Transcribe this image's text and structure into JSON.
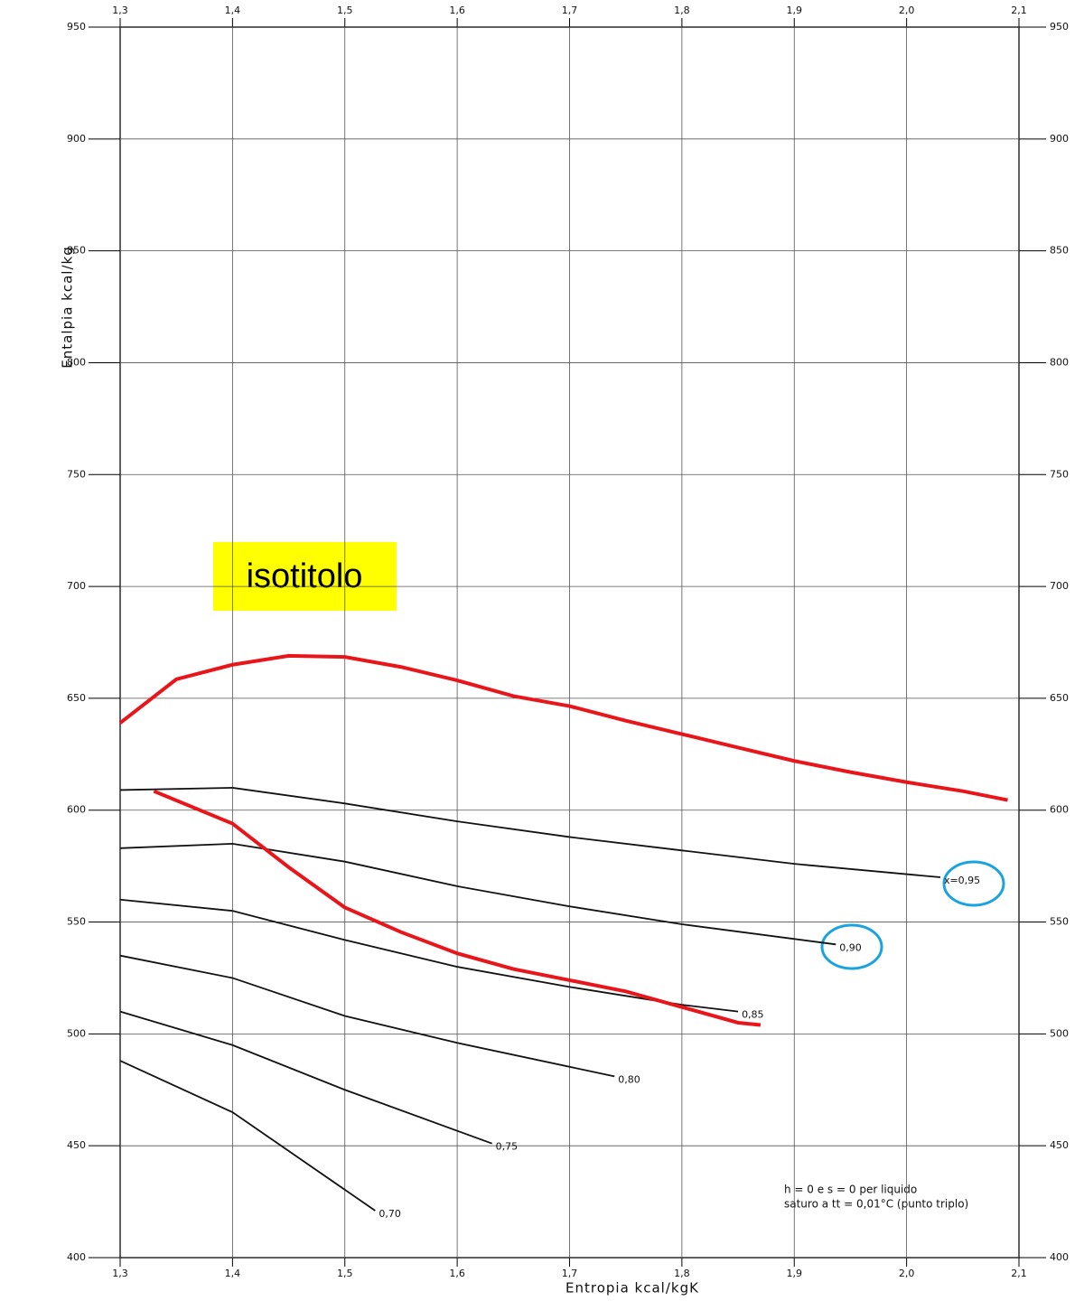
{
  "chart_data": {
    "type": "line",
    "x_label": "Entropia kcal/kgK",
    "y_label": "Entalpia kcal/kg",
    "xlim": [
      1.3,
      2.1
    ],
    "ylim": [
      400,
      950
    ],
    "xticks": [
      {
        "value": 1.3,
        "label": "1,3"
      },
      {
        "value": 1.4,
        "label": "1,4"
      },
      {
        "value": 1.5,
        "label": "1,5"
      },
      {
        "value": 1.6,
        "label": "1,6"
      },
      {
        "value": 1.7,
        "label": "1,7"
      },
      {
        "value": 1.8,
        "label": "1,8"
      },
      {
        "value": 1.9,
        "label": "1,9"
      },
      {
        "value": 2.0,
        "label": "2,0"
      },
      {
        "value": 2.1,
        "label": "2,1"
      }
    ],
    "yticks": [
      400,
      450,
      500,
      550,
      600,
      650,
      700,
      750,
      800,
      850,
      900,
      950
    ],
    "grid": true,
    "series": [
      {
        "name": "x=0,95",
        "color": "#111111",
        "x": [
          1.3,
          1.4,
          1.5,
          1.6,
          1.7,
          1.8,
          1.9,
          2.03
        ],
        "values": [
          609,
          610,
          603,
          595,
          588,
          582,
          576,
          570
        ]
      },
      {
        "name": "0,90",
        "color": "#111111",
        "x": [
          1.3,
          1.4,
          1.5,
          1.6,
          1.7,
          1.8,
          1.937
        ],
        "values": [
          583,
          585,
          577,
          566,
          557,
          549,
          540
        ]
      },
      {
        "name": "0,85",
        "color": "#111111",
        "x": [
          1.3,
          1.4,
          1.5,
          1.6,
          1.7,
          1.8,
          1.85
        ],
        "values": [
          560,
          555,
          542,
          530,
          521,
          513,
          510
        ]
      },
      {
        "name": "0,80",
        "color": "#111111",
        "x": [
          1.3,
          1.4,
          1.5,
          1.6,
          1.74
        ],
        "values": [
          535,
          525,
          508,
          496,
          481
        ]
      },
      {
        "name": "0,75",
        "color": "#111111",
        "x": [
          1.3,
          1.4,
          1.5,
          1.631
        ],
        "values": [
          510,
          495,
          475,
          451
        ]
      },
      {
        "name": "0,70",
        "color": "#111111",
        "x": [
          1.3,
          1.4,
          1.527
        ],
        "values": [
          488,
          465,
          421
        ]
      },
      {
        "color": "#e8161b",
        "x": [
          1.3,
          1.35,
          1.4,
          1.45,
          1.5,
          1.55,
          1.6,
          1.65,
          1.7,
          1.75,
          1.8,
          1.85,
          1.9,
          1.95,
          2.0,
          2.05,
          2.09
        ],
        "values": [
          639,
          658.5,
          665,
          669,
          668.5,
          664,
          658,
          651,
          646.5,
          640,
          634,
          628,
          622,
          617,
          612.5,
          608.5,
          604.5
        ]
      },
      {
        "color": "#e8161b",
        "x": [
          1.33,
          1.4,
          1.45,
          1.5,
          1.55,
          1.6,
          1.65,
          1.7,
          1.75,
          1.8,
          1.85,
          1.87
        ],
        "values": [
          608.5,
          594,
          574.5,
          556.5,
          545.5,
          536,
          529,
          524,
          519,
          512,
          505,
          504
        ]
      }
    ],
    "annotation": "isotitolo",
    "note": [
      "h = 0   e   s = 0     per liquido",
      "saturo  a  tt = 0,01°C  (punto triplo)"
    ]
  }
}
